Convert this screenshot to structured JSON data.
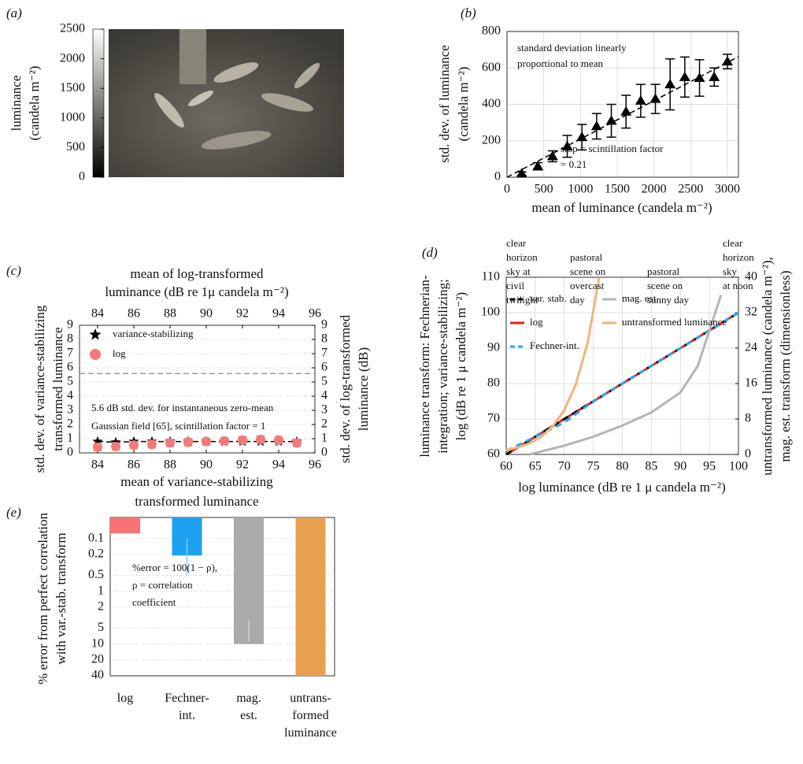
{
  "chart_data": [
    {
      "type": "image",
      "panel_label": "(a)",
      "colorbar": {
        "label": [
          "luminance",
          "(candela m⁻²)"
        ],
        "lim": [
          0,
          2500
        ],
        "ticks": [
          0,
          500,
          1000,
          1500,
          2000,
          2500
        ]
      }
    },
    {
      "type": "errorbar",
      "panel_label": "(b)",
      "xlabel": "mean of luminance (candela m⁻²)",
      "ylabel": [
        "std. dev. of luminance",
        "(candela m⁻²)"
      ],
      "annotations": [
        [
          "standard deviation linearly",
          "proportional to mean"
        ],
        [
          "slop = scintillation factor",
          "= 0.21"
        ]
      ],
      "x": [
        200,
        420,
        620,
        820,
        1020,
        1220,
        1420,
        1620,
        1820,
        2020,
        2220,
        2420,
        2620,
        2820,
        3000
      ],
      "values": [
        20,
        60,
        115,
        170,
        220,
        280,
        310,
        360,
        420,
        430,
        510,
        550,
        545,
        550,
        635
      ],
      "errors": [
        10,
        20,
        30,
        60,
        70,
        70,
        90,
        90,
        90,
        80,
        140,
        110,
        100,
        50,
        40
      ],
      "color": "#000000",
      "fit_slope": 0.21,
      "xlim": [
        0,
        3150
      ],
      "ylim": [
        0,
        800
      ],
      "xticks": [
        0,
        500,
        1000,
        1500,
        2000,
        2500,
        3000
      ],
      "yticks": [
        0,
        200,
        400,
        600,
        800
      ],
      "grid": true
    },
    {
      "type": "scatter",
      "panel_label": "(c)",
      "xlabel": [
        "mean of variance-stabilizing",
        "transformed luminance"
      ],
      "x2label": [
        "mean of log-transformed",
        "luminance (dB re 1μ candela m⁻²)"
      ],
      "ylabel": [
        "std. dev. of variance-stabilizing",
        "transformed luminance"
      ],
      "y2label": [
        "std. dev. of log-transformed",
        "luminance (dB)"
      ],
      "annotation": [
        "5.6 dB std. dev. for instantaneous zero-mean",
        "Gaussian field [65], scintillation factor = 1"
      ],
      "reference_line": 5.6,
      "x": [
        84,
        85,
        86,
        87,
        88,
        89,
        90,
        91,
        92,
        93,
        94,
        95
      ],
      "series": [
        {
          "name": "variance-stabilizing",
          "color": "#000000",
          "marker": "star",
          "axis": "y",
          "values": [
            0.8,
            0.75,
            0.8,
            0.8,
            0.8,
            0.8,
            0.8,
            0.8,
            0.8,
            0.8,
            0.8,
            0.8
          ]
        },
        {
          "name": "log",
          "color": "#f47a7a",
          "marker": "circle",
          "axis": "y2",
          "values": [
            0.4,
            0.45,
            0.55,
            0.6,
            0.7,
            0.75,
            0.8,
            0.85,
            0.9,
            0.95,
            0.9,
            0.7
          ],
          "errors": [
            0.25,
            0.25,
            0.25,
            0.25,
            0.25,
            0.25,
            0.25,
            0.25,
            0.25,
            0.25,
            0.25,
            0.25
          ]
        }
      ],
      "xlim": [
        83,
        96
      ],
      "x2lim": [
        83,
        96
      ],
      "ylim": [
        0,
        9
      ],
      "y2lim": [
        0,
        9
      ],
      "xticks": [
        84,
        86,
        88,
        90,
        92,
        94,
        96
      ],
      "x2ticks": [
        84,
        86,
        88,
        90,
        92,
        94,
        96
      ],
      "yticks": [
        0,
        1,
        2,
        3,
        4,
        5,
        6,
        7,
        8,
        9
      ],
      "y2ticks": [
        0,
        1,
        2,
        3,
        4,
        5,
        6,
        7,
        8,
        9
      ],
      "grid": true
    },
    {
      "type": "line",
      "panel_label": "(d)",
      "xlabel": "log luminance (dB re 1 μ candela m⁻²)",
      "ylabel": [
        "luminance transform: Fechnerian-",
        "integration; variance-stabilizing;",
        "log (dB re 1 μ candela m⁻²)"
      ],
      "y2label": [
        "untransformed luminance (candela m⁻²),",
        "mag. est. transform (dimensionless)"
      ],
      "scenes": [
        [
          "clear",
          "horizon",
          "sky at",
          "civil",
          "twilight"
        ],
        [
          "pastoral",
          "scene on",
          "overcast",
          "day"
        ],
        [
          "pastoral",
          "scene on",
          "sunny day"
        ],
        [
          "clear",
          "horizon",
          "sky",
          "at noon"
        ]
      ],
      "series": [
        {
          "name": "log",
          "color": "#e62020",
          "dash": false,
          "axis": "y",
          "x": [
            60,
            70,
            80,
            90,
            100
          ],
          "values": [
            60,
            70,
            80,
            90,
            100
          ]
        },
        {
          "name": "var. stab.",
          "color": "#000000",
          "dash": true,
          "axis": "y",
          "x": [
            60,
            70,
            80,
            90,
            100
          ],
          "values": [
            60,
            70,
            80,
            90,
            100
          ]
        },
        {
          "name": "Fechner-int.",
          "color": "#2ea6ee",
          "dash": true,
          "axis": "y",
          "x": [
            60,
            65,
            70,
            75,
            80,
            85,
            90,
            95,
            100
          ],
          "values": [
            61,
            65,
            69,
            75,
            80,
            85,
            90,
            95,
            100
          ]
        },
        {
          "name": "mag. est.",
          "color": "#b4b4b4",
          "dash": false,
          "axis": "y2",
          "x": [
            64,
            70,
            75,
            80,
            85,
            90,
            93,
            95,
            97
          ],
          "values": [
            0,
            2,
            4,
            6.5,
            9.5,
            14,
            20,
            28,
            36
          ]
        },
        {
          "name": "untransformed luminance",
          "color": "#f0b47a",
          "dash": false,
          "axis": "y2",
          "x": [
            60,
            62,
            64,
            66,
            68,
            70,
            72,
            74,
            76
          ],
          "values": [
            1,
            1.58,
            2.51,
            3.98,
            6.31,
            10,
            15.85,
            25.12,
            39.81
          ]
        }
      ],
      "xlim": [
        60,
        100
      ],
      "ylim": [
        60,
        110
      ],
      "y2lim": [
        0,
        40
      ],
      "xticks": [
        60,
        65,
        70,
        75,
        80,
        85,
        90,
        95,
        100
      ],
      "yticks": [
        60,
        70,
        80,
        90,
        100,
        110
      ],
      "y2ticks": [
        0,
        8,
        16,
        24,
        32,
        40
      ],
      "grid": true
    },
    {
      "type": "bar",
      "panel_label": "(e)",
      "ylabel": [
        "% error from perfect correlation",
        "with var.-stab. transform"
      ],
      "annotation": [
        "%error = 100(1 − ρ),",
        "ρ = correlation",
        "coefficient"
      ],
      "categories": [
        [
          "log"
        ],
        [
          "Fechner-",
          "int."
        ],
        [
          "mag.",
          "est."
        ],
        [
          "untrans-",
          "formed",
          "luminance"
        ]
      ],
      "values": [
        0.08,
        0.21,
        10,
        40
      ],
      "error_range": [
        null,
        [
          0.1,
          0.5
        ],
        [
          3.5,
          9
        ],
        null
      ],
      "colors": [
        "#f87474",
        "#1ea0f0",
        "#aaaaaa",
        "#e8a050"
      ],
      "log_scale": true,
      "y_inverted": true,
      "ylim": [
        0.04,
        40
      ],
      "yticks": [
        0.1,
        0.2,
        0.5,
        1,
        2,
        5,
        10,
        20,
        40
      ],
      "grid": true
    }
  ]
}
